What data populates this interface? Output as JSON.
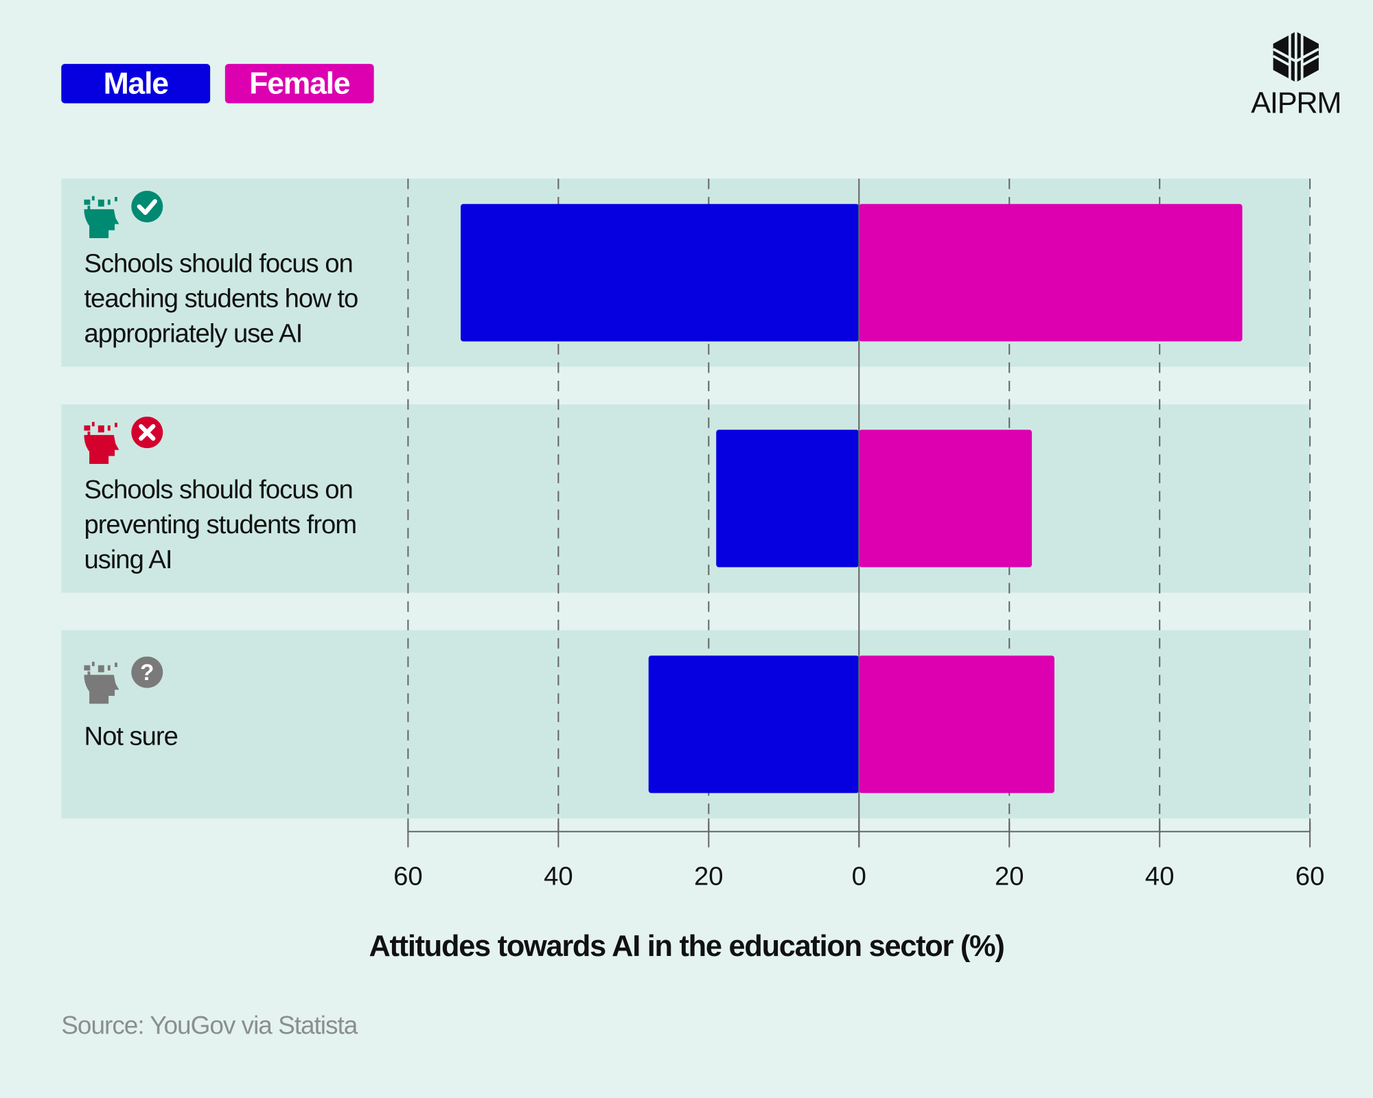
{
  "legend": [
    {
      "label": "Male",
      "color": "#0600e0"
    },
    {
      "label": "Female",
      "color": "#dc00b0"
    }
  ],
  "logo": {
    "text": "AIPRM"
  },
  "chart_data": {
    "type": "bar",
    "orientation": "horizontal-diverging",
    "categories": [
      "Schools should focus on teaching students how to appropriately use AI",
      "Schools should focus on preventing students from using AI",
      "Not sure"
    ],
    "category_icons": [
      "head-check-icon",
      "head-cross-icon",
      "head-question-icon"
    ],
    "icon_colors": [
      "#008a72",
      "#d4002e",
      "#7a7a7a"
    ],
    "series": [
      {
        "name": "Male",
        "color": "#0600e0",
        "values": [
          53,
          19,
          28
        ]
      },
      {
        "name": "Female",
        "color": "#dc00b0",
        "values": [
          51,
          23,
          26
        ]
      }
    ],
    "xlim": [
      -60,
      60
    ],
    "tick_values": [
      -60,
      -40,
      -20,
      0,
      20,
      40,
      60
    ],
    "tick_labels": [
      "60",
      "40",
      "20",
      "0",
      "20",
      "40",
      "60"
    ],
    "xlabel": "Attitudes towards AI in the education sector (%)",
    "grid": true,
    "legend_position": "top-left"
  },
  "source": "Source: YouGov via Statista"
}
